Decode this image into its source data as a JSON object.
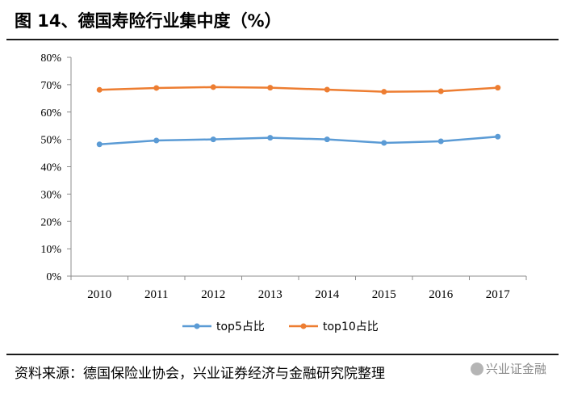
{
  "figure": {
    "title": "图 14、德国寿险行业集中度（%）",
    "source": "资料来源：德国保险业协会，兴业证券经济与金融研究院整理",
    "watermark": "兴业证金融"
  },
  "chart_data": {
    "type": "line",
    "title": "图 14、德国寿险行业集中度（%）",
    "xlabel": "",
    "ylabel": "",
    "categories": [
      "2010",
      "2011",
      "2012",
      "2013",
      "2014",
      "2015",
      "2016",
      "2017"
    ],
    "ylim": [
      0,
      80
    ],
    "yticks": [
      0,
      10,
      20,
      30,
      40,
      50,
      60,
      70,
      80
    ],
    "ytick_labels": [
      "0%",
      "10%",
      "20%",
      "30%",
      "40%",
      "50%",
      "60%",
      "70%",
      "80%"
    ],
    "grid": false,
    "legend_position": "bottom-center",
    "series": [
      {
        "name": "top5占比",
        "color": "#5b9bd5",
        "values": [
          48.2,
          49.6,
          50.0,
          50.6,
          50.0,
          48.7,
          49.3,
          51.0
        ]
      },
      {
        "name": "top10占比",
        "color": "#ed7d31",
        "values": [
          68.1,
          68.8,
          69.1,
          68.9,
          68.2,
          67.4,
          67.6,
          68.9
        ]
      }
    ]
  }
}
